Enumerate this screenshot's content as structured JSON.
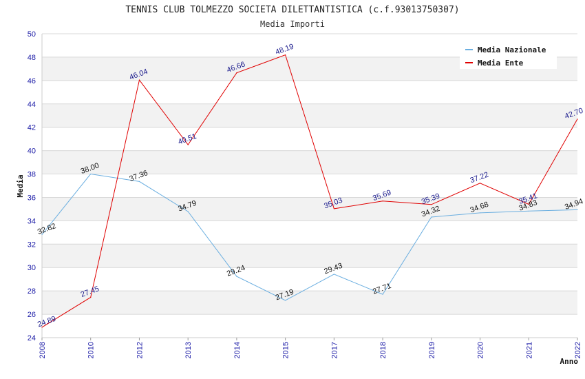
{
  "chart_data": {
    "type": "line",
    "title": "TENNIS CLUB TOLMEZZO SOCIETA DILETTANTISTICA (c.f.93013750307)",
    "subtitle": "Media Importi",
    "xlabel": "Anno",
    "ylabel": "Media",
    "ylim": [
      24,
      50
    ],
    "ytick_step": 2,
    "grid": true,
    "legend_position": "top-right",
    "categories": [
      "2008",
      "2010",
      "2012",
      "2013",
      "2014",
      "2015",
      "2017",
      "2018",
      "2019",
      "2020",
      "2021",
      "2022"
    ],
    "series": [
      {
        "name": "Media Nazionale",
        "color": "#6aaee0",
        "label_color": "#111111",
        "values": [
          32.82,
          38.0,
          37.36,
          34.79,
          29.24,
          27.19,
          29.43,
          27.71,
          34.32,
          34.68,
          34.83,
          34.94
        ]
      },
      {
        "name": "Media Ente",
        "color": "#e00000",
        "label_color": "#1a1a8c",
        "values": [
          24.89,
          27.45,
          46.04,
          40.51,
          46.66,
          48.19,
          35.03,
          35.69,
          35.39,
          37.22,
          35.41,
          42.7
        ]
      }
    ]
  }
}
